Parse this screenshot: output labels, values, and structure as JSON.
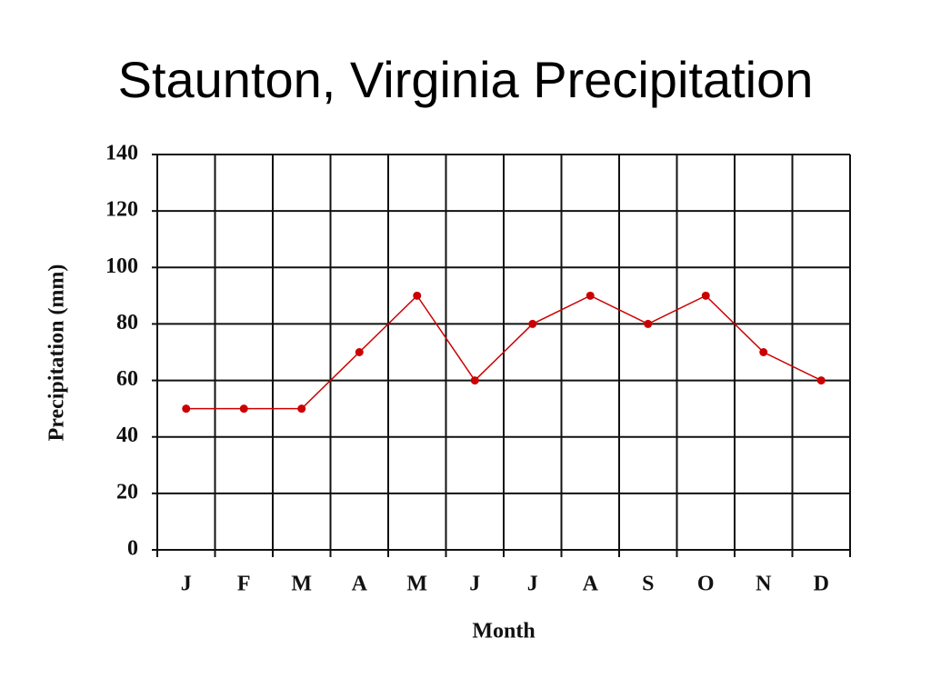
{
  "chart_data": {
    "type": "line",
    "title": "Staunton, Virginia Precipitation",
    "y_label": "Precipitation (mm)",
    "x_label": "Month",
    "categories": [
      "J",
      "F",
      "M",
      "A",
      "M",
      "J",
      "J",
      "A",
      "S",
      "O",
      "N",
      "D"
    ],
    "values": [
      50,
      50,
      50,
      70,
      90,
      60,
      80,
      90,
      80,
      90,
      70,
      60
    ],
    "color": "#cc0000",
    "ylim": [
      0,
      140
    ],
    "yticks": [
      0,
      20,
      40,
      60,
      80,
      100,
      120,
      140
    ],
    "grid": true
  }
}
